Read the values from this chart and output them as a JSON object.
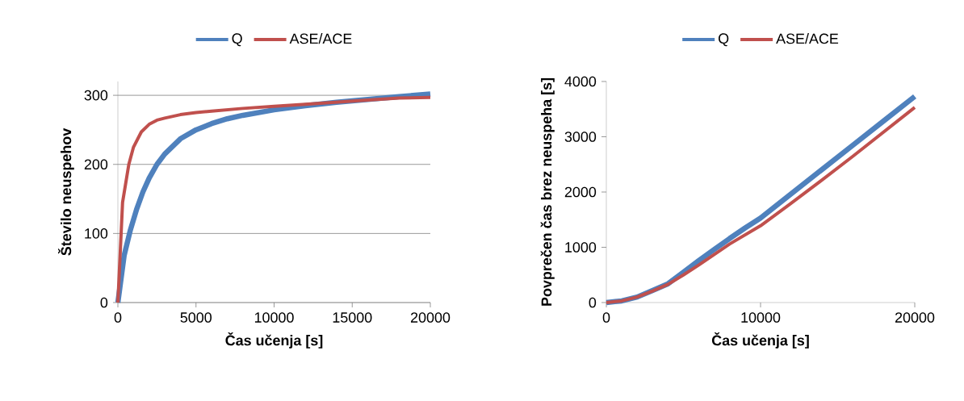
{
  "chart_data": [
    {
      "type": "line",
      "xlabel": "Čas učenja [s]",
      "ylabel": "Število neuspehov",
      "xlim": [
        0,
        20000
      ],
      "ylim": [
        0,
        320
      ],
      "xticks": [
        0,
        5000,
        10000,
        15000,
        20000
      ],
      "yticks": [
        0,
        100,
        200,
        300
      ],
      "grid": "y",
      "legend": "top",
      "marker": "none",
      "line_style": "solid",
      "series": [
        {
          "name": "Q",
          "color": "#4f81bd",
          "x": [
            0,
            400,
            800,
            1200,
            1600,
            2000,
            2500,
            3000,
            4000,
            5000,
            6000,
            7000,
            8000,
            10000,
            12000,
            14000,
            16000,
            18000,
            20000
          ],
          "values": [
            0,
            68,
            105,
            135,
            160,
            180,
            200,
            215,
            237,
            250,
            259,
            266,
            271,
            279,
            285,
            290,
            294,
            298,
            302
          ]
        },
        {
          "name": "ASE/ACE",
          "color": "#c0504d",
          "x": [
            0,
            300,
            700,
            1000,
            1500,
            2000,
            2500,
            3000,
            4000,
            5000,
            6000,
            8000,
            10000,
            12000,
            14000,
            16000,
            18000,
            20000
          ],
          "values": [
            0,
            145,
            200,
            225,
            247,
            258,
            264,
            267,
            272,
            275,
            277,
            281,
            284,
            287,
            290,
            293,
            296,
            297
          ]
        }
      ]
    },
    {
      "type": "line",
      "xlabel": "Čas učenja [s]",
      "ylabel": "Povprečen čas brez neuspeha [s]",
      "xlim": [
        0,
        20000
      ],
      "ylim": [
        0,
        4000
      ],
      "xticks": [
        0,
        10000,
        20000
      ],
      "yticks": [
        0,
        1000,
        2000,
        3000,
        4000
      ],
      "legend": "top",
      "marker": "none",
      "line_style": "solid",
      "series": [
        {
          "name": "Q",
          "color": "#4f81bd",
          "x": [
            0,
            1000,
            2000,
            3000,
            4000,
            5000,
            6000,
            7000,
            8000,
            9000,
            10000,
            12000,
            14000,
            16000,
            18000,
            20000
          ],
          "values": [
            0,
            30,
            100,
            220,
            340,
            550,
            760,
            960,
            1160,
            1350,
            1530,
            1970,
            2410,
            2850,
            3290,
            3730
          ]
        },
        {
          "name": "ASE/ACE",
          "color": "#c0504d",
          "x": [
            0,
            1000,
            2000,
            3000,
            4000,
            5000,
            6000,
            7000,
            8000,
            10000,
            12000,
            14000,
            16000,
            18000,
            20000
          ],
          "values": [
            0,
            30,
            100,
            210,
            330,
            500,
            680,
            870,
            1060,
            1390,
            1800,
            2220,
            2650,
            3090,
            3530
          ]
        }
      ]
    }
  ]
}
